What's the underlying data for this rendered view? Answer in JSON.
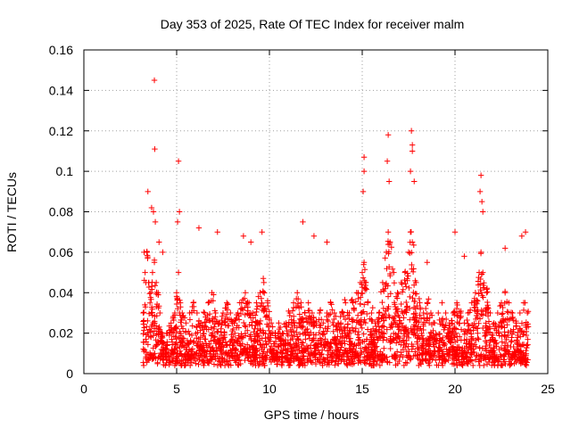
{
  "chart_data": {
    "type": "scatter",
    "title": "Day 353 of 2025, Rate Of TEC Index for receiver malm",
    "xlabel": "GPS time / hours",
    "ylabel": "ROTI / TECUs",
    "xlim": [
      0,
      25
    ],
    "ylim": [
      0,
      0.16
    ],
    "xticks": [
      "0",
      "5",
      "10",
      "15",
      "20",
      "25"
    ],
    "yticks": [
      "0",
      "0.02",
      "0.04",
      "0.06",
      "0.08",
      "0.1",
      "0.12",
      "0.14",
      "0.16"
    ],
    "grid": true,
    "marker": "+",
    "marker_color": "#ff0000",
    "series": [
      {
        "x": [
          3.2,
          3.3,
          3.4,
          3.5,
          3.6,
          3.7,
          3.8,
          3.9,
          4.0,
          4.1,
          4.2,
          4.3,
          4.5,
          4.7,
          4.9,
          5.0,
          5.1,
          5.2,
          5.3,
          5.5,
          5.7,
          5.9,
          6.1,
          6.3,
          6.5,
          6.7,
          6.9,
          7.1,
          7.3,
          7.5,
          7.7,
          7.9,
          8.1,
          8.3,
          8.5,
          8.7,
          8.9,
          9.1,
          9.3,
          9.5,
          9.7,
          9.9,
          10.1,
          10.3,
          10.5,
          10.7,
          10.9,
          11.1,
          11.3,
          11.5,
          11.7,
          11.9,
          12.1,
          12.3,
          12.5,
          12.7,
          12.9,
          13.1,
          13.3,
          13.5,
          13.7,
          13.9,
          14.1,
          14.3,
          14.5,
          14.7,
          14.9,
          15.0,
          15.1,
          15.2,
          15.3,
          15.5,
          15.7,
          15.9,
          16.1,
          16.3,
          16.4,
          16.5,
          16.7,
          16.9,
          17.1,
          17.3,
          17.5,
          17.6,
          17.7,
          17.9,
          18.1,
          18.3,
          18.5,
          18.7,
          18.9,
          19.1,
          19.3,
          19.5,
          19.7,
          19.9,
          20.1,
          20.3,
          20.5,
          20.7,
          20.9,
          21.1,
          21.3,
          21.4,
          21.5,
          21.7,
          21.9,
          22.1,
          22.3,
          22.5,
          22.7,
          22.9,
          23.1,
          23.3,
          23.5,
          23.7,
          23.9,
          3.25,
          3.45,
          3.65,
          3.75,
          3.85,
          4.05,
          4.25,
          5.05,
          5.15,
          6.2,
          7.2,
          8.6,
          9.0,
          9.6,
          11.8,
          12.4,
          13.1,
          15.05,
          15.1,
          16.35,
          16.45,
          17.6,
          17.7,
          17.8,
          18.5,
          20.0,
          20.5,
          21.35,
          21.45,
          21.5,
          22.7,
          23.6,
          23.8,
          3.8,
          3.82,
          5.1,
          16.4,
          17.65,
          17.7,
          15.1,
          21.4
        ],
        "y": [
          0.03,
          0.05,
          0.06,
          0.045,
          0.04,
          0.05,
          0.055,
          0.045,
          0.04,
          0.03,
          0.02,
          0.015,
          0.02,
          0.025,
          0.03,
          0.04,
          0.05,
          0.035,
          0.03,
          0.025,
          0.03,
          0.035,
          0.03,
          0.025,
          0.03,
          0.035,
          0.04,
          0.03,
          0.025,
          0.03,
          0.035,
          0.03,
          0.025,
          0.03,
          0.035,
          0.04,
          0.035,
          0.03,
          0.035,
          0.04,
          0.045,
          0.035,
          0.025,
          0.02,
          0.025,
          0.02,
          0.025,
          0.03,
          0.035,
          0.04,
          0.035,
          0.03,
          0.035,
          0.03,
          0.025,
          0.03,
          0.025,
          0.03,
          0.035,
          0.03,
          0.025,
          0.03,
          0.035,
          0.03,
          0.035,
          0.04,
          0.045,
          0.05,
          0.055,
          0.045,
          0.035,
          0.03,
          0.025,
          0.03,
          0.045,
          0.06,
          0.07,
          0.065,
          0.05,
          0.04,
          0.045,
          0.05,
          0.06,
          0.07,
          0.065,
          0.045,
          0.035,
          0.03,
          0.035,
          0.03,
          0.025,
          0.03,
          0.035,
          0.03,
          0.025,
          0.03,
          0.035,
          0.03,
          0.025,
          0.03,
          0.035,
          0.04,
          0.05,
          0.06,
          0.05,
          0.04,
          0.03,
          0.025,
          0.03,
          0.035,
          0.04,
          0.035,
          0.03,
          0.025,
          0.03,
          0.035,
          0.03,
          0.06,
          0.09,
          0.082,
          0.08,
          0.075,
          0.065,
          0.06,
          0.075,
          0.08,
          0.072,
          0.07,
          0.068,
          0.065,
          0.07,
          0.075,
          0.068,
          0.065,
          0.09,
          0.1,
          0.105,
          0.095,
          0.1,
          0.11,
          0.095,
          0.055,
          0.07,
          0.058,
          0.09,
          0.085,
          0.08,
          0.062,
          0.068,
          0.07,
          0.145,
          0.111,
          0.105,
          0.118,
          0.12,
          0.113,
          0.107,
          0.098
        ],
        "density_bands": [
          {
            "x0": 3.2,
            "x1": 24.0,
            "y0": 0.005,
            "y1": 0.03
          },
          {
            "x0": 3.2,
            "x1": 24.0,
            "y0": 0.01,
            "y1": 0.045
          }
        ]
      }
    ]
  }
}
